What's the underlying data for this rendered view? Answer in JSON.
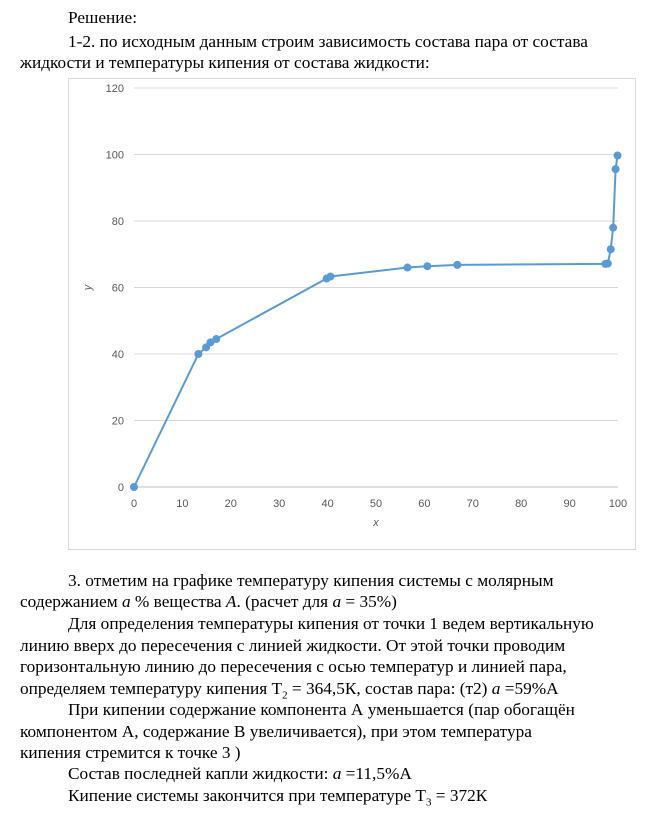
{
  "doc": {
    "heading": "Решение:",
    "intro_1": "1-2. по исходным данным строим зависимость состава пара от состава",
    "intro_2": "жидкости и температуры кипения от состава жидкости:",
    "p3_1": "3. отметим на графике температуру кипения системы с молярным",
    "p3_2a": "содержанием ",
    "p3_2_var": "а",
    "p3_2b": " % вещества ",
    "p3_2_A": "А",
    "p3_2c": ". (расчет для ",
    "p3_2_var2": "а",
    "p3_2d": " = 35%)",
    "p4_1": "Для определения температуры кипения от точки 1 ведем вертикальную",
    "p4_2": "линию вверх до пересечения с линией жидкости. От этой точки проводим",
    "p4_3": "горизонтальную линию до пересечения с осью температур и линией пара,",
    "p4_4a": "определяем температуру кипения Т",
    "p4_4_sub": "2",
    "p4_4b": " = 364,5К, состав пара: (т2) ",
    "p4_4_var": "а",
    "p4_4c": " =59%А",
    "p5_1": "При кипении содержание компонента А уменьшается (пар обогащён",
    "p5_2": "компонентом А, содержание В увеличивается), при этом температура",
    "p5_3": "кипения стремится к точке 3 )",
    "p6a": "Состав последней капли жидкости: ",
    "p6_var": "а",
    "p6b": " =11,5%А",
    "p7a": "Кипение системы закончится при температуре Т",
    "p7_sub": "3",
    "p7b": " = 372К"
  },
  "chart_data": {
    "type": "scatter",
    "mode": "lines+markers",
    "xlabel": "x",
    "ylabel": "y",
    "xlim": [
      0,
      100
    ],
    "ylim": [
      0,
      120
    ],
    "x_ticks": [
      0,
      10,
      20,
      30,
      40,
      50,
      60,
      70,
      80,
      90,
      100
    ],
    "y_ticks": [
      0,
      20,
      40,
      60,
      80,
      100,
      120
    ],
    "grid": "horizontal",
    "series_color": "#5b9bd5",
    "points": [
      [
        0,
        0
      ],
      [
        13.3,
        40
      ],
      [
        14.9,
        42
      ],
      [
        15.8,
        43.5
      ],
      [
        17.0,
        44.5
      ],
      [
        39.8,
        62.7
      ],
      [
        40.6,
        63.3
      ],
      [
        56.5,
        66
      ],
      [
        60.6,
        66.4
      ],
      [
        66.8,
        66.8
      ],
      [
        97.4,
        67.1
      ],
      [
        97.9,
        67.2
      ],
      [
        98.5,
        71.5
      ],
      [
        99.0,
        78
      ],
      [
        99.5,
        95.6
      ],
      [
        99.9,
        99.7
      ]
    ]
  }
}
